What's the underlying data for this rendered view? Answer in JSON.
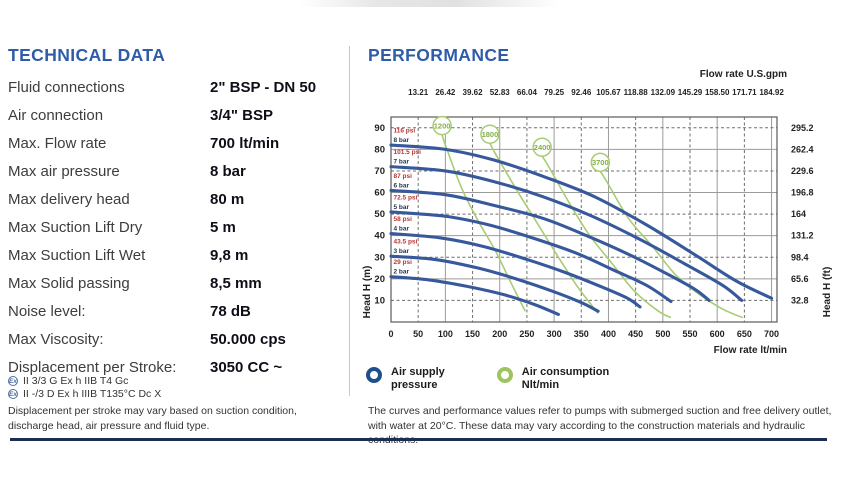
{
  "technical": {
    "title": "TECHNICAL DATA",
    "rows": [
      {
        "label": "Fluid connections",
        "value": "2\" BSP - DN 50"
      },
      {
        "label": "Air connection",
        "value": "3/4\" BSP"
      },
      {
        "label": "Max. Flow rate",
        "value": "700 lt/min"
      },
      {
        "label": "Max air pressure",
        "value": "8 bar"
      },
      {
        "label": "Max delivery head",
        "value": "80 m"
      },
      {
        "label": "Max Suction Lift Dry",
        "value": "5 m"
      },
      {
        "label": "Max Suction Lift Wet",
        "value": "9,8 m"
      },
      {
        "label": "Max Solid passing",
        "value": "8,5 mm"
      },
      {
        "label": "Noise level:",
        "value": "78 dB"
      },
      {
        "label": "Max Viscosity:",
        "value": "50.000 cps"
      },
      {
        "label": "Displacement per Stroke:",
        "value": "3050 CC ~"
      }
    ],
    "atex": [
      {
        "symbol": "Ex",
        "text": "II 3/3 G Ex h IIB T4 Gc"
      },
      {
        "symbol": "Ex",
        "text": "II -/3 D Ex h IIIB T135°C Dc X"
      }
    ],
    "footnote": "Displacement per stroke may vary based on suction condition, discharge head, air pressure and fluid type."
  },
  "performance": {
    "title": "PERFORMANCE",
    "legend": [
      {
        "label_line1": "Air supply",
        "label_line2": "pressure",
        "color": "#1f4e8c"
      },
      {
        "label_line1": "Air consumption",
        "label_line2": "Nlt/min",
        "color": "#9ec45f"
      }
    ],
    "footnote": "The curves and performance values refer to pumps with submerged suction and free delivery outlet, with water at 20°C. These data may vary according to the construction materials and hydraulic conditions."
  },
  "chart_data": {
    "type": "line",
    "xlim": [
      0,
      710
    ],
    "ylim": [
      0,
      95
    ],
    "top_axis_label": "Flow rate U.S.gpm",
    "bottom_axis_label": "Flow rate  lt/min",
    "left_axis_label": "Head H (m)",
    "right_axis_label": "Head H (ft)",
    "x_bottom_ticks": [
      0,
      50,
      100,
      150,
      200,
      250,
      300,
      350,
      400,
      450,
      500,
      550,
      600,
      650,
      700
    ],
    "x_top_ticks": [
      "13.21",
      "26.42",
      "39.62",
      "52.83",
      "66.04",
      "79.25",
      "92.46",
      "105.67",
      "118.88",
      "132.09",
      "145.29",
      "158.50",
      "171.71",
      "184.92"
    ],
    "y_left_ticks": [
      10,
      20,
      30,
      40,
      50,
      60,
      70,
      80,
      90
    ],
    "y_right_ticks": [
      "32.8",
      "65.6",
      "98.4",
      "131.2",
      "164",
      "196.8",
      "229.6",
      "262.4",
      "295.2"
    ],
    "air_supply_curves": [
      {
        "psi_label": "116 psi",
        "bar_label": "8 bar",
        "points": [
          [
            0,
            82
          ],
          [
            100,
            80
          ],
          [
            190,
            75
          ],
          [
            285,
            67
          ],
          [
            375,
            58
          ],
          [
            470,
            45
          ],
          [
            560,
            31
          ],
          [
            635,
            19
          ],
          [
            700,
            11
          ]
        ]
      },
      {
        "psi_label": "101.5 psi",
        "bar_label": "7 bar",
        "points": [
          [
            0,
            72
          ],
          [
            100,
            70
          ],
          [
            190,
            65
          ],
          [
            280,
            58
          ],
          [
            370,
            49
          ],
          [
            460,
            38
          ],
          [
            540,
            27
          ],
          [
            610,
            17
          ],
          [
            645,
            10
          ]
        ]
      },
      {
        "psi_label": "87 psi",
        "bar_label": "6 bar",
        "points": [
          [
            0,
            61
          ],
          [
            100,
            59
          ],
          [
            190,
            54
          ],
          [
            280,
            48
          ],
          [
            360,
            40
          ],
          [
            440,
            31
          ],
          [
            510,
            22
          ],
          [
            560,
            15
          ],
          [
            585,
            10
          ]
        ]
      },
      {
        "psi_label": "72.5 psi",
        "bar_label": "5 bar",
        "points": [
          [
            0,
            51
          ],
          [
            100,
            49
          ],
          [
            180,
            45
          ],
          [
            260,
            39
          ],
          [
            340,
            32
          ],
          [
            410,
            24
          ],
          [
            470,
            17
          ],
          [
            515,
            9.5
          ]
        ]
      },
      {
        "psi_label": "58 psi",
        "bar_label": "4 bar",
        "points": [
          [
            0,
            41
          ],
          [
            90,
            39
          ],
          [
            170,
            35
          ],
          [
            250,
            29
          ],
          [
            320,
            23
          ],
          [
            390,
            16
          ],
          [
            435,
            11
          ],
          [
            458,
            7
          ]
        ]
      },
      {
        "psi_label": "43.5 psi",
        "bar_label": "3 bar",
        "points": [
          [
            0,
            30.5
          ],
          [
            80,
            29
          ],
          [
            160,
            25
          ],
          [
            230,
            20
          ],
          [
            300,
            14
          ],
          [
            350,
            9
          ],
          [
            381,
            5
          ]
        ]
      },
      {
        "psi_label": "29 psi",
        "bar_label": "2 bar",
        "points": [
          [
            0,
            21
          ],
          [
            70,
            19.5
          ],
          [
            140,
            16.5
          ],
          [
            210,
            12.5
          ],
          [
            265,
            8
          ],
          [
            308,
            3.5
          ]
        ]
      }
    ],
    "air_consumption_curves": [
      {
        "label": "1200",
        "circle": [
          94,
          91
        ],
        "points": [
          [
            100,
            82
          ],
          [
            130,
            62
          ],
          [
            160,
            47
          ],
          [
            192,
            33
          ],
          [
            223,
            17
          ],
          [
            247,
            5
          ]
        ]
      },
      {
        "label": "1800",
        "circle": [
          182,
          87
        ],
        "points": [
          [
            192,
            78
          ],
          [
            234,
            60
          ],
          [
            271,
            45
          ],
          [
            308,
            30
          ],
          [
            344,
            16
          ],
          [
            381,
            4
          ]
        ]
      },
      {
        "label": "2400",
        "circle": [
          278,
          81
        ],
        "points": [
          [
            290,
            72
          ],
          [
            326,
            56
          ],
          [
            363,
            41
          ],
          [
            407,
            27
          ],
          [
            449,
            14
          ],
          [
            492,
            5
          ],
          [
            515,
            2
          ]
        ]
      },
      {
        "label": "3700",
        "circle": [
          385,
          74
        ],
        "points": [
          [
            397,
            65
          ],
          [
            437,
            48
          ],
          [
            481,
            35
          ],
          [
            523,
            22
          ],
          [
            566,
            13
          ],
          [
            610,
            6
          ],
          [
            647,
            2
          ]
        ]
      }
    ],
    "colors": {
      "curve_blue": "#37599b",
      "curve_green": "#a9cc72",
      "circle_stroke": "#a9cc72",
      "circle_text": "#83ae47",
      "psi_text": "#bb3333",
      "bar_text": "#1e3250",
      "grid_solid": "#9b9b9b",
      "grid_dash": "#6e6e6e",
      "border": "#5a5a5a",
      "tick_text": "#222222"
    }
  }
}
